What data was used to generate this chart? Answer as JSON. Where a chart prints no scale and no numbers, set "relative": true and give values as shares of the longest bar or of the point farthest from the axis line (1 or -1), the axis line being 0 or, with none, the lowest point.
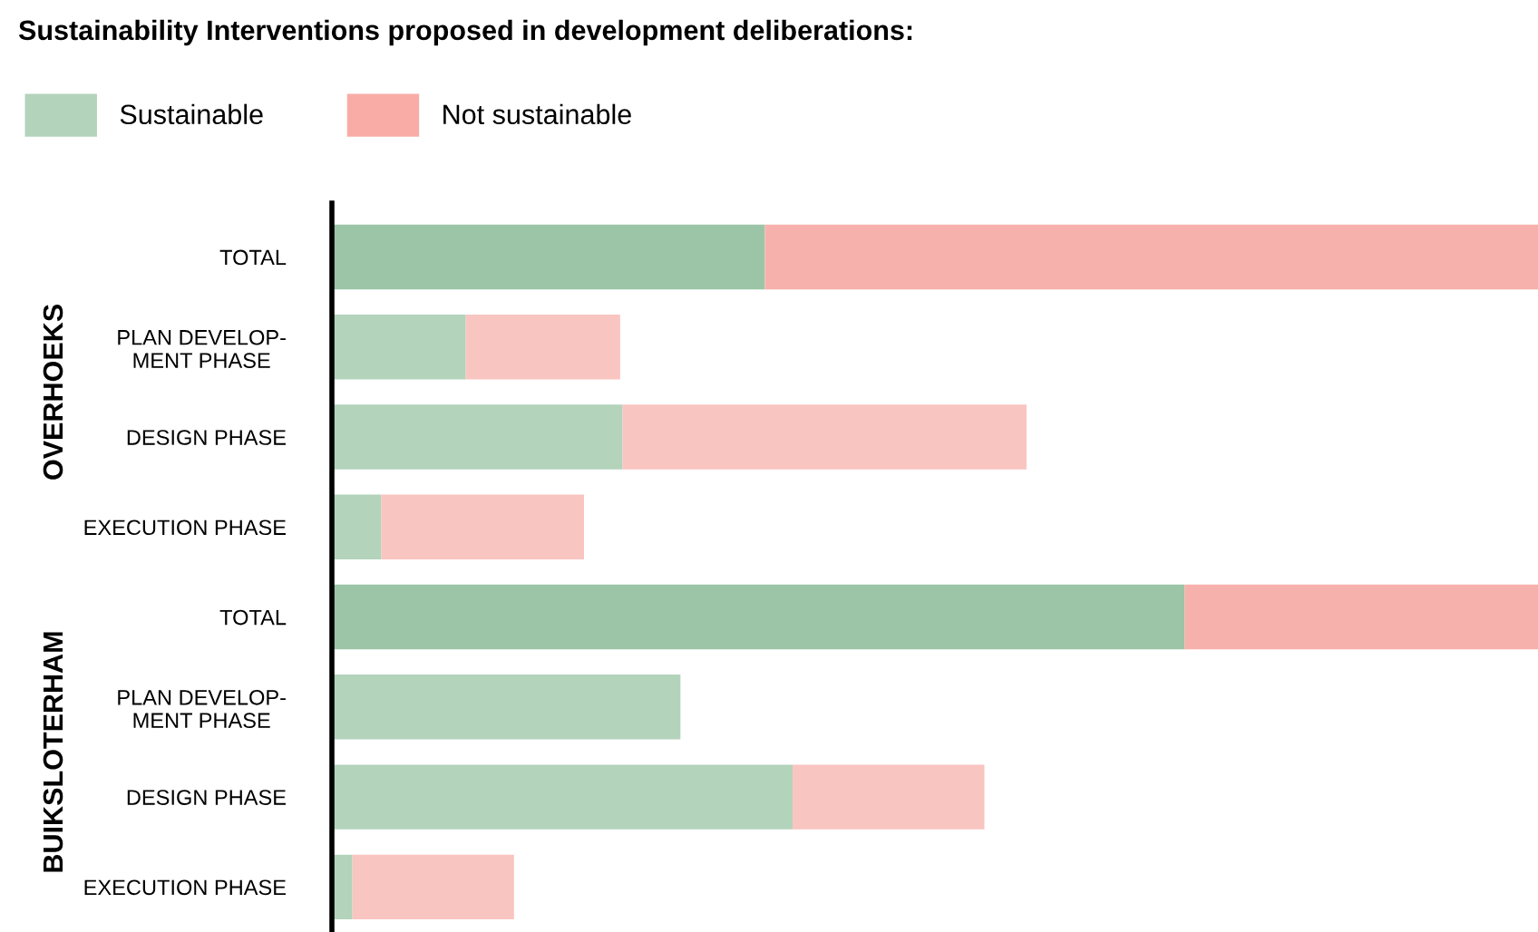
{
  "chart_data": {
    "type": "bar",
    "orientation": "horizontal",
    "stacked": true,
    "relative": true,
    "legend": "top left",
    "title": "Sustainability Interventions proposed in development deliberations:",
    "categories": [
      "TOTAL",
      "PLAN DEVELOP-\nMENT PHASE",
      "DESIGN PHASE",
      "EXECUTION PHASE",
      "TOTAL",
      "PLAN DEVELOP-\nMENT PHASE",
      "DESIGN PHASE",
      "EXECUTION PHASE"
    ],
    "annotations": [
      "OVERHOEKS",
      "BUIKSLOTERHAM"
    ],
    "series": [
      {
        "name": "Sustainable",
        "color": "#b3d3bb",
        "colors": [
          "#9cc5a7",
          "#b3d3bb",
          "#b3d3bb",
          "#b3d3bb",
          "#9cc5a7",
          "#b3d3bb",
          "#b3d3bb",
          "#b3d3bb"
        ],
        "values": [
          0.359,
          0.111,
          0.241,
          0.041,
          0.707,
          0.289,
          0.382,
          0.017
        ]
      },
      {
        "name": "Not sustainable",
        "color": "#f9aca6",
        "colors": [
          "#f7b1ac",
          "#f9c5c0",
          "#f9c5c0",
          "#f9c5c0",
          "#f7b1ac",
          "#f9c5c0",
          "#f9c5c0",
          "#f9c5c0"
        ],
        "values": [
          0.641,
          0.128,
          0.335,
          0.168,
          0.293,
          0,
          0.159,
          0.134
        ]
      }
    ]
  }
}
